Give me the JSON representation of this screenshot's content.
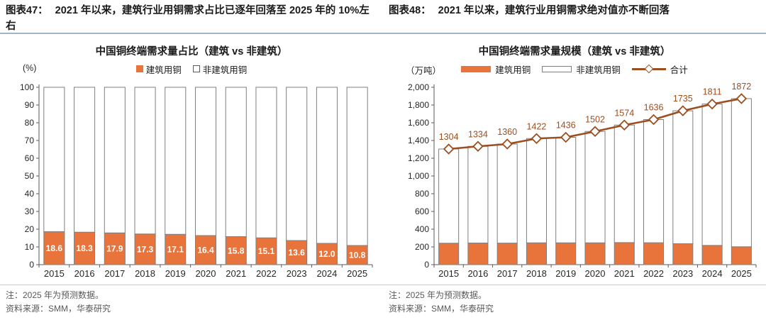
{
  "colors": {
    "construction_orange": "#E8743C",
    "total_line_brown": "#9C4E1E",
    "bar_outline_gray": "#7F7F7F",
    "header_rule_blue": "#9FB5C9",
    "note_gray": "#595959"
  },
  "figures": [
    {
      "label": "图表47：",
      "headline": "2021 年以来，建筑行业用铜需求占比已逐年回落至 2025 年的 10%左右",
      "chart_title": "中国铜终端需求量占比（建筑 vs 非建筑）",
      "axis_unit": "(%)",
      "legend": [
        {
          "name": "建筑用铜"
        },
        {
          "name": "非建筑用铜"
        }
      ],
      "note": "注：2025 年为预测数据。",
      "source": "资料来源：SMM，华泰研究"
    },
    {
      "label": "图表48：",
      "headline": "2021 年以来，建筑行业用铜需求绝对值亦不断回落",
      "chart_title": "中国铜终端需求量规模（建筑 vs 非建筑）",
      "axis_unit": "（万吨）",
      "legend": [
        {
          "name": "建筑用铜"
        },
        {
          "name": "非建筑用铜"
        },
        {
          "name": "合计"
        }
      ],
      "note": "注：2025 年为预测数据。",
      "source": "资料来源：SMM，华泰研究"
    }
  ],
  "chart_data": [
    {
      "type": "bar",
      "variant": "stacked-100-percent",
      "title": "中国铜终端需求量占比（建筑 vs 非建筑）",
      "ylabel": "(%)",
      "categories": [
        "2015",
        "2016",
        "2017",
        "2018",
        "2019",
        "2020",
        "2021",
        "2022",
        "2023",
        "2024",
        "2025"
      ],
      "series": [
        {
          "name": "建筑用铜",
          "role": "bar",
          "color": "#E8743C",
          "values": [
            18.6,
            18.3,
            17.9,
            17.3,
            17.1,
            16.4,
            15.8,
            15.1,
            13.6,
            12.0,
            10.8
          ],
          "data_labels": [
            "18.6",
            "18.3",
            "17.9",
            "17.3",
            "17.1",
            "16.4",
            "15.8",
            "15.1",
            "13.6",
            "12.0",
            "10.8"
          ]
        },
        {
          "name": "非建筑用铜",
          "role": "bar",
          "color": "#FFFFFF",
          "values": [
            81.4,
            81.7,
            82.1,
            82.7,
            82.9,
            83.6,
            84.2,
            84.9,
            86.4,
            88.0,
            89.2
          ]
        }
      ],
      "ylim": [
        0,
        100
      ],
      "ytick_step": 10,
      "grid": false,
      "legend_position": "top"
    },
    {
      "type": "bar",
      "variant": "stacked-with-total-line",
      "title": "中国铜终端需求量规模（建筑 vs 非建筑）",
      "ylabel": "（万吨）",
      "categories": [
        "2015",
        "2016",
        "2017",
        "2018",
        "2019",
        "2020",
        "2021",
        "2022",
        "2023",
        "2024",
        "2025"
      ],
      "series": [
        {
          "name": "建筑用铜",
          "role": "bar",
          "color": "#E8743C",
          "values": [
            242,
            244,
            243,
            246,
            246,
            246,
            249,
            247,
            236,
            217,
            202
          ]
        },
        {
          "name": "非建筑用铜",
          "role": "bar",
          "color": "#FFFFFF",
          "values": [
            1062,
            1090,
            1117,
            1176,
            1190,
            1256,
            1325,
            1389,
            1499,
            1594,
            1670
          ]
        },
        {
          "name": "合计",
          "role": "line",
          "color": "#9C4E1E",
          "values": [
            1304,
            1334,
            1360,
            1422,
            1436,
            1502,
            1574,
            1636,
            1735,
            1811,
            1872
          ],
          "data_labels": [
            "1304",
            "1334",
            "1360",
            "1422",
            "1436",
            "1502",
            "1574",
            "1636",
            "1735",
            "1811",
            "1872"
          ]
        }
      ],
      "ylim": [
        0,
        2000
      ],
      "ytick_step": 200,
      "ytick_format": "comma",
      "grid": false,
      "legend_position": "top"
    }
  ]
}
